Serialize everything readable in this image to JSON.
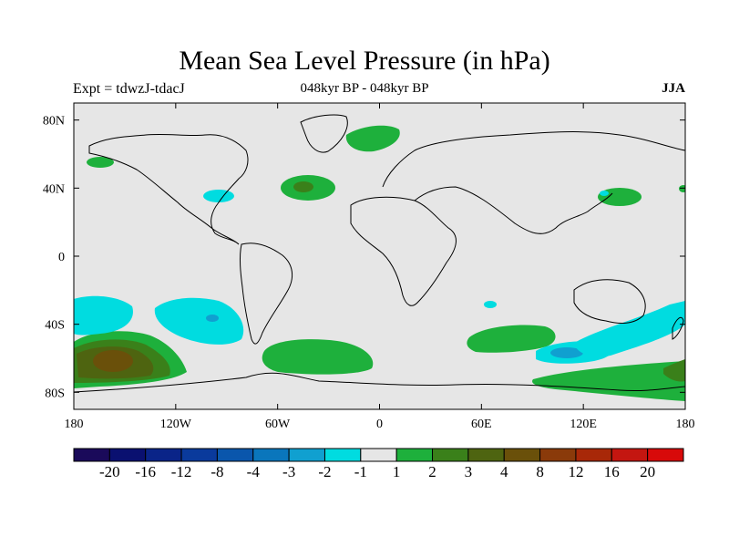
{
  "title": "Mean Sea Level Pressure (in hPa)",
  "subtitle_left": "Expt = tdwzJ-tdacJ",
  "subtitle_center": "048kyr BP - 048kyr BP",
  "subtitle_right": "JJA",
  "map": {
    "projection": "cylindrical-equidistant",
    "lon_range": [
      -180,
      180
    ],
    "lat_range": [
      -90,
      90
    ],
    "background_color": "#e6e6e6",
    "coastline_color": "#000000",
    "lon_ticks": [
      {
        "value": -180,
        "label": "180"
      },
      {
        "value": -120,
        "label": "120W"
      },
      {
        "value": -60,
        "label": "60W"
      },
      {
        "value": 0,
        "label": "0"
      },
      {
        "value": 60,
        "label": "60E"
      },
      {
        "value": 120,
        "label": "120E"
      },
      {
        "value": 180,
        "label": "180"
      }
    ],
    "lat_ticks": [
      {
        "value": 80,
        "label": "80N"
      },
      {
        "value": 40,
        "label": "40N"
      },
      {
        "value": 0,
        "label": "0"
      },
      {
        "value": -40,
        "label": "40S"
      },
      {
        "value": -80,
        "label": "80S"
      }
    ]
  },
  "colorbar": {
    "colors": [
      "#1a0a5a",
      "#0a1070",
      "#0a2488",
      "#0a3a9c",
      "#0a56ac",
      "#0a76bc",
      "#10a0d0",
      "#00dce0",
      "#e6e6e6",
      "#1eb03c",
      "#3a801a",
      "#4e6410",
      "#6a500a",
      "#8a3a0a",
      "#a82808",
      "#c41610",
      "#d80a0a"
    ],
    "labels": [
      "-20",
      "-16",
      "-12",
      "-8",
      "-4",
      "-3",
      "-2",
      "-1",
      "1",
      "2",
      "3",
      "4",
      "8",
      "12",
      "16",
      "20"
    ]
  },
  "chart_data": {
    "type": "heatmap",
    "title": "Mean Sea Level Pressure (in hPa)",
    "units": "hPa",
    "season": "JJA",
    "levels": [
      -20,
      -16,
      -12,
      -8,
      -4,
      -3,
      -2,
      -1,
      1,
      2,
      3,
      4,
      8,
      12,
      16,
      20
    ],
    "anomaly_regions": [
      {
        "lon": -163,
        "lat": -59,
        "value": 8
      },
      {
        "lon": -158,
        "lat": -58,
        "value": 4
      },
      {
        "lon": -140,
        "lat": -34,
        "value": -2
      },
      {
        "lon": -100,
        "lat": -34,
        "value": -3
      },
      {
        "lon": -93,
        "lat": 35,
        "value": -2
      },
      {
        "lon": -42,
        "lat": 38,
        "value": 3
      },
      {
        "lon": -15,
        "lat": 70,
        "value": 2
      },
      {
        "lon": -57,
        "lat": -57,
        "value": 2
      },
      {
        "lon": 75,
        "lat": -45,
        "value": 2
      },
      {
        "lon": 110,
        "lat": -52,
        "value": -3
      },
      {
        "lon": 150,
        "lat": -40,
        "value": -2
      },
      {
        "lon": 135,
        "lat": 33,
        "value": 2
      },
      {
        "lon": 150,
        "lat": -70,
        "value": 2
      },
      {
        "lon": -172,
        "lat": 60,
        "value": 2
      }
    ]
  }
}
